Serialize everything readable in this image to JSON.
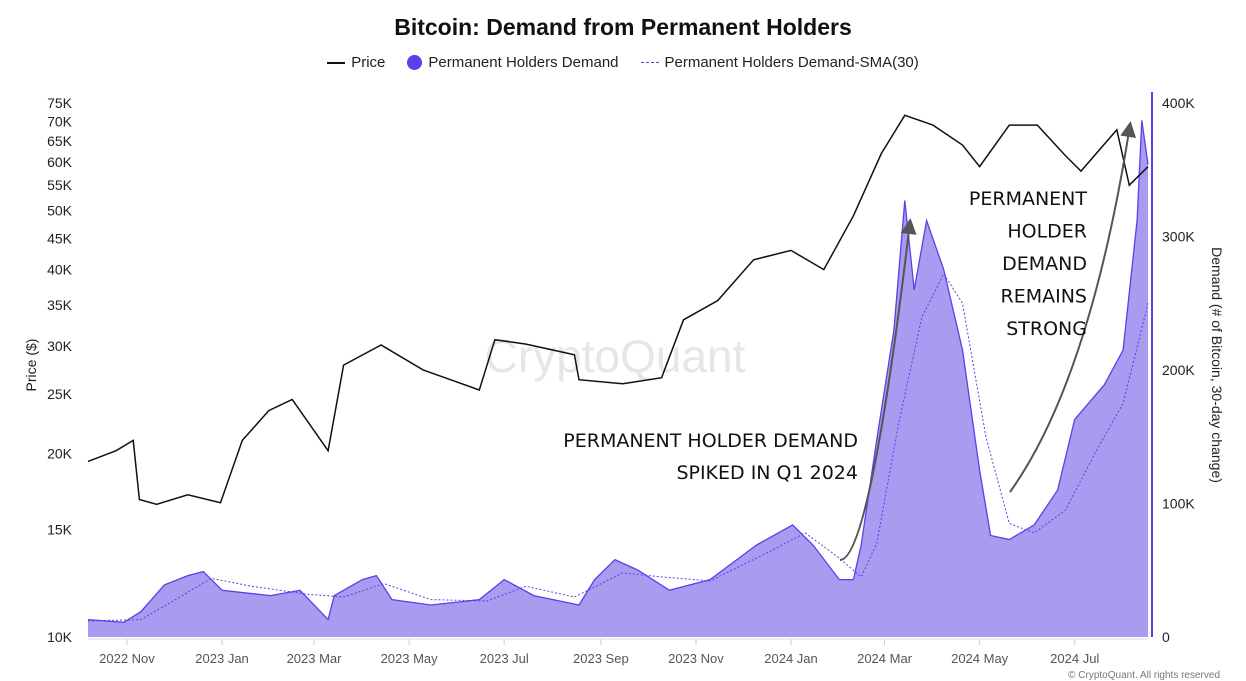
{
  "chart_data": {
    "type": "line",
    "title": "Bitcoin: Demand from Permanent Holders",
    "legend": [
      "Price",
      "Permanent Holders Demand",
      "Permanent Holders Demand-SMA(30)"
    ],
    "legend_placement": "top",
    "ylabel_left": "Price ($)",
    "ylabel_right": "Demand (# of Bitcoin, 30-day change)",
    "y_left_scale": "log",
    "y_left_range": [
      10000,
      75000
    ],
    "y_left_ticks": [
      "10K",
      "15K",
      "20K",
      "25K",
      "30K",
      "35K",
      "40K",
      "45K",
      "50K",
      "55K",
      "60K",
      "65K",
      "70K",
      "75K"
    ],
    "y_left_tick_values": [
      10,
      15,
      20,
      25,
      30,
      35,
      40,
      45,
      50,
      55,
      60,
      65,
      70,
      75
    ],
    "y_right_range": [
      0,
      400000
    ],
    "y_right_ticks": [
      "0",
      "100K",
      "200K",
      "300K",
      "400K"
    ],
    "y_right_tick_values": [
      0,
      100,
      200,
      300,
      400
    ],
    "x_range": [
      "2022-10-07",
      "2024-08-17"
    ],
    "x_ticks": [
      "2022 Nov",
      "2023 Jan",
      "2023 Mar",
      "2023 May",
      "2023 Jul",
      "2023 Sep",
      "2023 Nov",
      "2024 Jan",
      "2024 Mar",
      "2024 May",
      "2024 Jul"
    ],
    "x_tick_dates": [
      "2022-11-01",
      "2023-01-01",
      "2023-03-01",
      "2023-05-01",
      "2023-07-01",
      "2023-09-01",
      "2023-11-01",
      "2024-01-01",
      "2024-03-01",
      "2024-05-01",
      "2024-07-01"
    ],
    "grid": false,
    "colors": {
      "price": "#111111",
      "demand_fill": "#a79cf0",
      "demand_line": "#5b3fe8",
      "sma": "#5b3fe8"
    },
    "series": [
      {
        "name": "Price",
        "unit": "thousand USD",
        "points": [
          [
            "2022-10-07",
            19.4
          ],
          [
            "2022-10-25",
            20.2
          ],
          [
            "2022-11-05",
            21.0
          ],
          [
            "2022-11-09",
            16.8
          ],
          [
            "2022-11-20",
            16.5
          ],
          [
            "2022-12-10",
            17.1
          ],
          [
            "2022-12-31",
            16.6
          ],
          [
            "2023-01-14",
            21.0
          ],
          [
            "2023-01-31",
            23.5
          ],
          [
            "2023-02-15",
            24.5
          ],
          [
            "2023-03-10",
            20.2
          ],
          [
            "2023-03-20",
            27.9
          ],
          [
            "2023-04-13",
            30.1
          ],
          [
            "2023-05-10",
            27.4
          ],
          [
            "2023-06-15",
            25.4
          ],
          [
            "2023-06-25",
            30.7
          ],
          [
            "2023-07-15",
            30.2
          ],
          [
            "2023-08-15",
            29.0
          ],
          [
            "2023-08-18",
            26.4
          ],
          [
            "2023-09-15",
            26.0
          ],
          [
            "2023-10-10",
            26.6
          ],
          [
            "2023-10-24",
            33.1
          ],
          [
            "2023-11-15",
            35.6
          ],
          [
            "2023-12-08",
            41.5
          ],
          [
            "2024-01-01",
            43.0
          ],
          [
            "2024-01-22",
            40.0
          ],
          [
            "2024-02-10",
            49.0
          ],
          [
            "2024-02-28",
            62.0
          ],
          [
            "2024-03-14",
            71.6
          ],
          [
            "2024-04-01",
            69.0
          ],
          [
            "2024-04-20",
            64.0
          ],
          [
            "2024-05-01",
            59.0
          ],
          [
            "2024-05-20",
            69.0
          ],
          [
            "2024-06-07",
            69.0
          ],
          [
            "2024-06-25",
            61.5
          ],
          [
            "2024-07-05",
            58.0
          ],
          [
            "2024-07-28",
            67.8
          ],
          [
            "2024-08-05",
            55.0
          ],
          [
            "2024-08-17",
            59.0
          ]
        ]
      },
      {
        "name": "Permanent Holders Demand",
        "unit": "thousand BTC",
        "points": [
          [
            "2022-10-07",
            13
          ],
          [
            "2022-10-30",
            11
          ],
          [
            "2022-11-10",
            19
          ],
          [
            "2022-11-25",
            39
          ],
          [
            "2022-12-10",
            46
          ],
          [
            "2022-12-20",
            49
          ],
          [
            "2023-01-01",
            35
          ],
          [
            "2023-02-01",
            31
          ],
          [
            "2023-02-20",
            35
          ],
          [
            "2023-03-10",
            13
          ],
          [
            "2023-03-14",
            31
          ],
          [
            "2023-04-01",
            43
          ],
          [
            "2023-04-10",
            46
          ],
          [
            "2023-04-20",
            28
          ],
          [
            "2023-05-15",
            24
          ],
          [
            "2023-06-15",
            28
          ],
          [
            "2023-07-01",
            43
          ],
          [
            "2023-07-20",
            31
          ],
          [
            "2023-08-18",
            24
          ],
          [
            "2023-08-28",
            43
          ],
          [
            "2023-09-10",
            58
          ],
          [
            "2023-09-25",
            50
          ],
          [
            "2023-10-15",
            35
          ],
          [
            "2023-11-10",
            43
          ],
          [
            "2023-12-10",
            69
          ],
          [
            "2024-01-02",
            84
          ],
          [
            "2024-01-15",
            69
          ],
          [
            "2024-02-01",
            43
          ],
          [
            "2024-02-10",
            43
          ],
          [
            "2024-02-15",
            69
          ],
          [
            "2024-02-25",
            148
          ],
          [
            "2024-03-07",
            230
          ],
          [
            "2024-03-14",
            327
          ],
          [
            "2024-03-20",
            260
          ],
          [
            "2024-03-28",
            312
          ],
          [
            "2024-04-08",
            275
          ],
          [
            "2024-04-20",
            215
          ],
          [
            "2024-05-01",
            125
          ],
          [
            "2024-05-08",
            76
          ],
          [
            "2024-05-20",
            73
          ],
          [
            "2024-06-05",
            84
          ],
          [
            "2024-06-20",
            110
          ],
          [
            "2024-07-01",
            163
          ],
          [
            "2024-07-20",
            189
          ],
          [
            "2024-08-01",
            215
          ],
          [
            "2024-08-10",
            312
          ],
          [
            "2024-08-13",
            387
          ],
          [
            "2024-08-17",
            354
          ]
        ]
      },
      {
        "name": "Permanent Holders Demand-SMA(30)",
        "unit": "thousand BTC",
        "points": [
          [
            "2022-10-07",
            12
          ],
          [
            "2022-11-10",
            13
          ],
          [
            "2022-12-05",
            30
          ],
          [
            "2022-12-25",
            44
          ],
          [
            "2023-01-20",
            38
          ],
          [
            "2023-02-25",
            32
          ],
          [
            "2023-03-20",
            30
          ],
          [
            "2023-04-15",
            40
          ],
          [
            "2023-05-15",
            28
          ],
          [
            "2023-06-20",
            27
          ],
          [
            "2023-07-15",
            38
          ],
          [
            "2023-08-15",
            30
          ],
          [
            "2023-09-15",
            48
          ],
          [
            "2023-10-10",
            45
          ],
          [
            "2023-11-10",
            42
          ],
          [
            "2023-12-15",
            62
          ],
          [
            "2024-01-10",
            78
          ],
          [
            "2024-01-31",
            60
          ],
          [
            "2024-02-15",
            45
          ],
          [
            "2024-02-25",
            70
          ],
          [
            "2024-03-10",
            160
          ],
          [
            "2024-03-25",
            240
          ],
          [
            "2024-04-08",
            272
          ],
          [
            "2024-04-20",
            250
          ],
          [
            "2024-05-05",
            150
          ],
          [
            "2024-05-20",
            85
          ],
          [
            "2024-06-05",
            78
          ],
          [
            "2024-06-25",
            95
          ],
          [
            "2024-07-15",
            140
          ],
          [
            "2024-08-01",
            175
          ],
          [
            "2024-08-17",
            250
          ]
        ]
      }
    ],
    "annotations": [
      {
        "lines": [
          "PERMANENT HOLDER DEMAND",
          "SPIKED IN Q1 2024"
        ]
      },
      {
        "lines": [
          "PERMANENT",
          "HOLDER",
          "DEMAND",
          "REMAINS",
          "STRONG"
        ]
      }
    ],
    "watermark": "CryptoQuant"
  },
  "footer": {
    "copyright": "© CryptoQuant. All rights reserved"
  }
}
